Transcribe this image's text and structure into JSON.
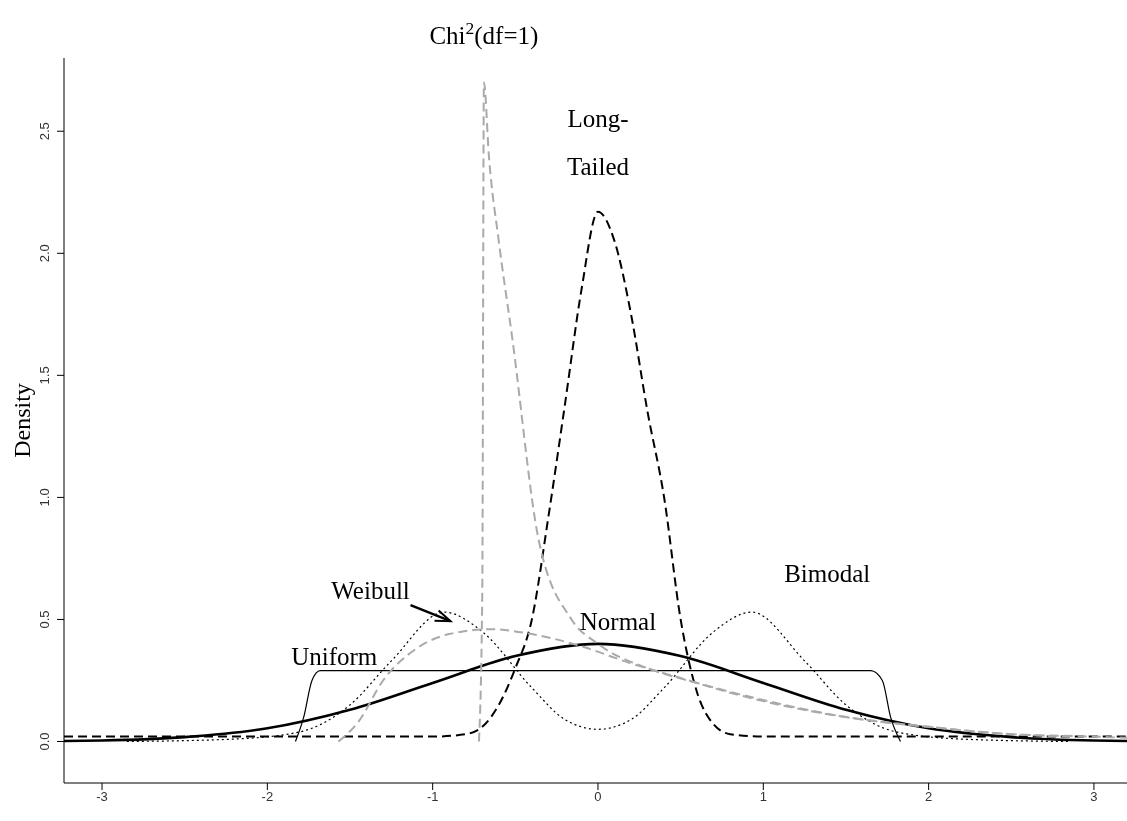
{
  "chart_data": {
    "type": "line",
    "ylabel": "Density",
    "xlim": [
      -3.23,
      3.2
    ],
    "ylim": [
      -0.17,
      2.8
    ],
    "xticks": [
      -3,
      -2,
      -1,
      0,
      1,
      2,
      3
    ],
    "yticks": [
      {
        "value": 0,
        "label": "0.0"
      },
      0.5,
      {
        "value": 1,
        "label": "1.0"
      },
      1.5,
      {
        "value": 2,
        "label": "2.0"
      },
      2.5
    ],
    "series": [
      {
        "name": "Normal",
        "color": "#000000",
        "line_style": "solid",
        "x": [
          -3.23,
          -3,
          -2.5,
          -2,
          -1.5,
          -1,
          -0.5,
          0,
          0.5,
          1,
          1.5,
          2,
          2.5,
          3,
          3.2
        ],
        "values": [
          0.002,
          0.004,
          0.018,
          0.054,
          0.13,
          0.24,
          0.35,
          0.4,
          0.35,
          0.24,
          0.13,
          0.054,
          0.018,
          0.004,
          0.002
        ]
      },
      {
        "name": "Uniform",
        "color": "#000000",
        "line_style": "solid",
        "x": [
          -1.83,
          -1.78,
          -1.73,
          -1.68,
          1.65,
          1.72,
          1.77,
          1.83
        ],
        "values": [
          0,
          0.1,
          0.25,
          0.29,
          0.29,
          0.25,
          0.1,
          0
        ]
      },
      {
        "name": "Bimodal",
        "color": "#000000",
        "line_style": "dotted",
        "x": [
          -2.85,
          -2.2,
          -1.8,
          -1.5,
          -1.25,
          -0.93,
          -0.7,
          -0.4,
          -0.2,
          0,
          0.2,
          0.4,
          0.7,
          0.93,
          1.25,
          1.5,
          1.8,
          2.2,
          2.85
        ],
        "values": [
          0,
          0.01,
          0.04,
          0.15,
          0.33,
          0.53,
          0.45,
          0.22,
          0.09,
          0.05,
          0.09,
          0.22,
          0.45,
          0.53,
          0.33,
          0.15,
          0.04,
          0.01,
          0
        ]
      },
      {
        "name": "Long-Tailed",
        "color": "#000000",
        "line_style": "dashed",
        "x": [
          -3.23,
          -1,
          -0.8,
          -0.7,
          -0.6,
          -0.5,
          -0.4,
          -0.3,
          -0.2,
          -0.1,
          0,
          0.1,
          0.2,
          0.3,
          0.4,
          0.5,
          0.6,
          0.7,
          0.8,
          1,
          3.2
        ],
        "values": [
          0.02,
          0.02,
          0.03,
          0.06,
          0.15,
          0.3,
          0.5,
          0.92,
          1.38,
          1.85,
          2.17,
          2.05,
          1.75,
          1.35,
          1.0,
          0.5,
          0.2,
          0.07,
          0.03,
          0.02,
          0.02
        ]
      },
      {
        "name": "Chi$^{2}$(df=1)",
        "color": "#aaaaaa",
        "line_style": "dashed",
        "x": [
          -0.72,
          -0.7,
          -0.69,
          -0.66,
          -0.6,
          -0.52,
          -0.36,
          -0.16,
          0,
          0.3,
          0.6,
          1,
          1.5,
          2,
          2.5,
          3,
          3.2
        ],
        "values": [
          0,
          0.6,
          2.7,
          2.4,
          2.05,
          1.66,
          0.83,
          0.5,
          0.4,
          0.3,
          0.24,
          0.17,
          0.1,
          0.06,
          0.03,
          0.02,
          0.015
        ]
      },
      {
        "name": "Weibull",
        "color": "#aaaaaa",
        "line_style": "dashed",
        "x": [
          -1.57,
          -1.45,
          -1.3,
          -1.1,
          -0.9,
          -0.65,
          -0.4,
          -0.1,
          0.2,
          0.5,
          0.8,
          1.1,
          1.5,
          2,
          2.5,
          2.85
        ],
        "values": [
          0,
          0.08,
          0.25,
          0.38,
          0.44,
          0.46,
          0.44,
          0.39,
          0.32,
          0.26,
          0.2,
          0.15,
          0.1,
          0.06,
          0.03,
          0.02
        ]
      }
    ]
  }
}
